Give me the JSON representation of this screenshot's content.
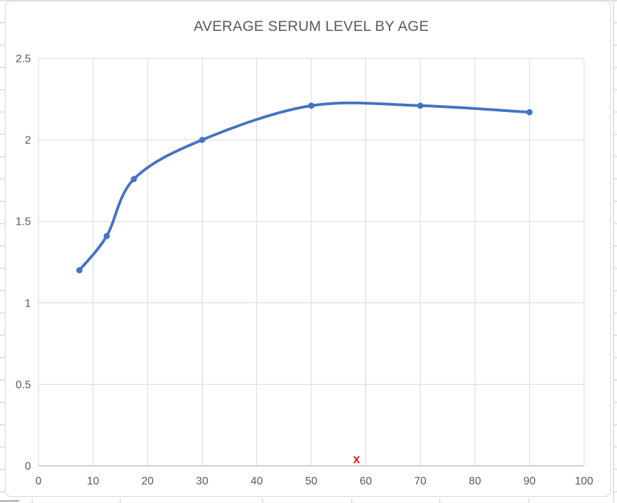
{
  "chart_data": {
    "type": "scatter",
    "style": "smooth-line-with-markers",
    "title": "AVERAGE SERUM LEVEL BY AGE",
    "series": [
      {
        "x": [
          7.5,
          12.5,
          17.5,
          30,
          50,
          70,
          90
        ],
        "y": [
          1.2,
          1.41,
          1.76,
          2.0,
          2.21,
          2.21,
          2.17
        ]
      }
    ],
    "annotation": {
      "text": "X",
      "x": 58.3,
      "y": 0.04
    },
    "x_axis": {
      "min": 0,
      "max": 100,
      "tick_step": 10,
      "tick_labels": [
        "0",
        "10",
        "20",
        "30",
        "40",
        "50",
        "60",
        "70",
        "80",
        "90",
        "100"
      ]
    },
    "y_axis": {
      "min": 0,
      "max": 2.5,
      "tick_step": 0.5,
      "tick_labels": [
        "0",
        "0.5",
        "1",
        "1.5",
        "2",
        "2.5"
      ]
    },
    "grid": true,
    "legend": false
  },
  "colors": {
    "series": "#4472C4",
    "gridline": "#D9D9D9",
    "axis_line": "#BFBFBF",
    "tick_label": "#595959",
    "title": "#595959",
    "annotation": "#FF0000",
    "chart_border": "#D7D7D7",
    "sheet_grid": "#D9D9D9",
    "sheet_grid_dark": "#A6A6A6",
    "plot_background": "#FFFFFF"
  }
}
